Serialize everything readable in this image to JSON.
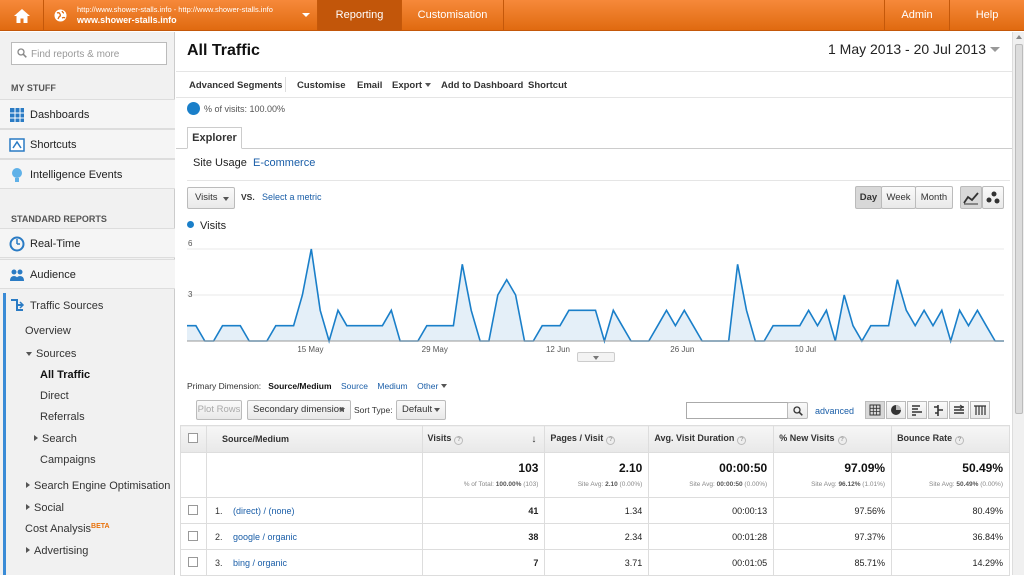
{
  "topbar": {
    "account_url": "http://www.shower-stalls.info - http://www.shower-stalls.info",
    "account_name": "www.shower-stalls.info",
    "nav": [
      "Reporting",
      "Customisation"
    ],
    "admin": "Admin",
    "help": "Help"
  },
  "sidebar": {
    "search_placeholder": "Find reports & more",
    "my_stuff": "MY STUFF",
    "dashboards": "Dashboards",
    "shortcuts": "Shortcuts",
    "intelligence": "Intelligence Events",
    "standard_reports": "STANDARD REPORTS",
    "realtime": "Real-Time",
    "audience": "Audience",
    "traffic_sources": "Traffic Sources",
    "overview": "Overview",
    "sources": "Sources",
    "all_traffic": "All Traffic",
    "direct": "Direct",
    "referrals": "Referrals",
    "search": "Search",
    "campaigns": "Campaigns",
    "seo": "Search Engine Optimisation",
    "social": "Social",
    "cost_analysis": "Cost Analysis",
    "beta": "BETA",
    "advertising": "Advertising"
  },
  "main": {
    "title": "All Traffic",
    "date_range": "1 May 2013 - 20 Jul 2013",
    "toolbar": [
      "Advanced Segments",
      "Customise",
      "Email",
      "Export",
      "Add to Dashboard",
      "Shortcut"
    ],
    "segment": "% of visits: 100.00%",
    "tab_explorer": "Explorer",
    "subtab_usage": "Site Usage",
    "subtab_ecommerce": "E-commerce",
    "metric": "Visits",
    "vs": "VS.",
    "select_metric": "Select a metric",
    "period": {
      "day": "Day",
      "week": "Week",
      "month": "Month"
    }
  },
  "chart_data": {
    "type": "area",
    "title": "",
    "series": [
      {
        "name": "Visits",
        "values": [
          1,
          1,
          0,
          0,
          1,
          1,
          1,
          0,
          0,
          0,
          1,
          1,
          1,
          3,
          6,
          2,
          0,
          2,
          1,
          1,
          1,
          1,
          1,
          2,
          0,
          0,
          0,
          1,
          1,
          1,
          1,
          5,
          2,
          0,
          0,
          3,
          4,
          3,
          0,
          0,
          1,
          1,
          1,
          2,
          2,
          2,
          2,
          0,
          2,
          1,
          0,
          0,
          0,
          1,
          2,
          1,
          2,
          1,
          0,
          0,
          0,
          0,
          5,
          2,
          0,
          0,
          1,
          1,
          1,
          1,
          2,
          1,
          2,
          0,
          3,
          1,
          0,
          1,
          1,
          1,
          4,
          2,
          1,
          2,
          1,
          2,
          0,
          2,
          1,
          2,
          1,
          0,
          0
        ]
      }
    ],
    "ylim": [
      0,
      6
    ],
    "yticks": [
      "6",
      "3"
    ],
    "xlabels": [
      "15 May",
      "29 May",
      "12 Jun",
      "26 Jun",
      "10 Jul"
    ],
    "color": "#1a7fc9"
  },
  "table": {
    "primary_dimension_label": "Primary Dimension:",
    "dims": [
      "Source/Medium",
      "Source",
      "Medium",
      "Other"
    ],
    "plot_rows": "Plot Rows",
    "secondary_dimension": "Secondary dimension",
    "sort_type": "Sort Type:",
    "sort_default": "Default",
    "advanced": "advanced",
    "headers": [
      "Source/Medium",
      "Visits",
      "Pages / Visit",
      "Avg. Visit Duration",
      "% New Visits",
      "Bounce Rate"
    ],
    "totals": {
      "visits": "103",
      "visits_sub": "% of Total:",
      "visits_sub_b": "100.00%",
      "visits_sub_c": "(103)",
      "ppv": "2.10",
      "ppv_sub": "Site Avg:",
      "ppv_sub_b": "2.10",
      "ppv_sub_c": "(0.00%)",
      "avd": "00:00:50",
      "avd_sub": "Site Avg:",
      "avd_sub_b": "00:00:50",
      "avd_sub_c": "(0.00%)",
      "nv": "97.09%",
      "nv_sub": "Site Avg:",
      "nv_sub_b": "96.12%",
      "nv_sub_c": "(1.01%)",
      "br": "50.49%",
      "br_sub": "Site Avg:",
      "br_sub_b": "50.49%",
      "br_sub_c": "(0.00%)"
    },
    "rows": [
      {
        "n": "1.",
        "source": "(direct) / (none)",
        "visits": "41",
        "ppv": "1.34",
        "avd": "00:00:13",
        "nv": "97.56%",
        "br": "80.49%"
      },
      {
        "n": "2.",
        "source": "google / organic",
        "visits": "38",
        "ppv": "2.34",
        "avd": "00:01:28",
        "nv": "97.37%",
        "br": "36.84%"
      },
      {
        "n": "3.",
        "source": "bing / organic",
        "visits": "7",
        "ppv": "3.71",
        "avd": "00:01:05",
        "nv": "85.71%",
        "br": "14.29%"
      }
    ]
  }
}
